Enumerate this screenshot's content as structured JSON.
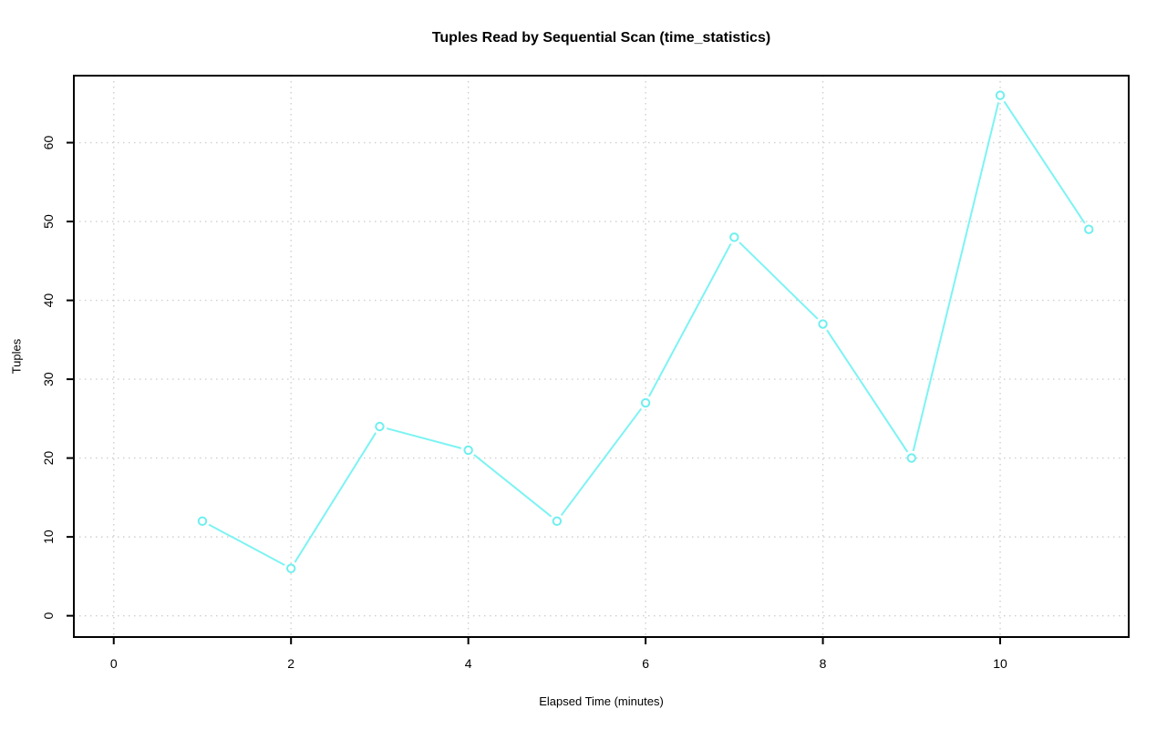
{
  "chart_data": {
    "type": "line",
    "title": "Tuples Read by Sequential Scan (time_statistics)",
    "xlabel": "Elapsed Time (minutes)",
    "ylabel": "Tuples",
    "x": [
      1,
      2,
      3,
      4,
      5,
      6,
      7,
      8,
      9,
      10,
      11
    ],
    "y": [
      12,
      6,
      24,
      21,
      12,
      27,
      48,
      37,
      20,
      66,
      49
    ],
    "x_ticks": [
      0,
      2,
      4,
      6,
      8,
      10
    ],
    "y_ticks": [
      0,
      10,
      20,
      30,
      40,
      50,
      60
    ],
    "xlim": [
      -0.45,
      11.45
    ],
    "ylim": [
      -2.7,
      68.5
    ],
    "grid": true,
    "grid_style": "dotted",
    "legend_position": "none",
    "marker": "open-circle",
    "line_style": "solid-with-point-gaps",
    "colors": {
      "line": "#7DF3F3",
      "marker": "#6FEFEF",
      "grid": "#CFCFCF",
      "axis": "#000000",
      "text": "#000000",
      "background": "#FFFFFF"
    }
  }
}
